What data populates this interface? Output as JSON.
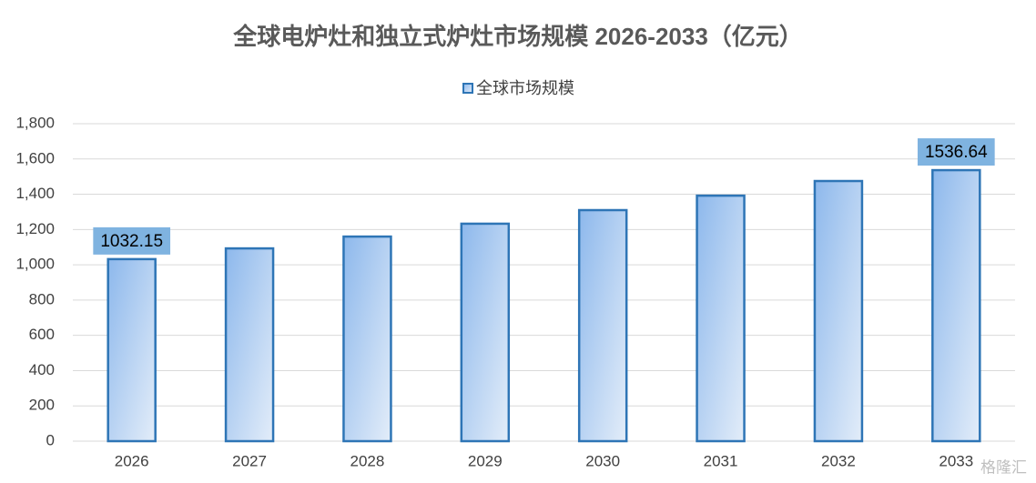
{
  "chart_data": {
    "type": "bar",
    "title": "全球电炉灶和独立式炉灶市场规模 2026-2033（亿元）",
    "categories": [
      "2026",
      "2027",
      "2028",
      "2029",
      "2030",
      "2031",
      "2032",
      "2033"
    ],
    "series": [
      {
        "name": "全球市场规模",
        "color": "#2e75b6",
        "values": [
          1032.15,
          1093,
          1160,
          1233,
          1310,
          1392,
          1475,
          1536.64
        ],
        "value_labels": [
          "1032.15",
          null,
          null,
          null,
          null,
          null,
          null,
          "1536.64"
        ]
      }
    ],
    "ylim": [
      0,
      1800
    ],
    "yticks": [
      0,
      200,
      400,
      600,
      800,
      {
        "value": 1000,
        "label": "1,000"
      },
      {
        "value": 1200,
        "label": "1,200"
      },
      {
        "value": 1400,
        "label": "1,400"
      },
      {
        "value": 1600,
        "label": "1,600"
      },
      {
        "value": 1800,
        "label": "1,800"
      }
    ],
    "grid": true,
    "legend": "top",
    "watermark": "格隆汇"
  }
}
